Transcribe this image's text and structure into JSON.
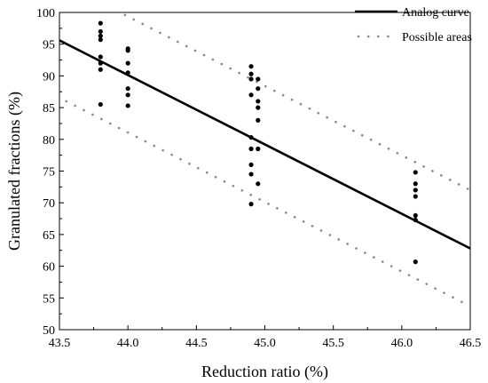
{
  "chart_data": {
    "type": "scatter",
    "title": "",
    "xlabel": "Reduction ratio (%)",
    "ylabel": "Granulated fractions (%)",
    "xlim": [
      43.5,
      46.5
    ],
    "ylim": [
      50,
      100
    ],
    "xticks": [
      "43.5",
      "44.0",
      "44.5",
      "45.0",
      "45.5",
      "46.0",
      "46.5"
    ],
    "xtick_values": [
      43.5,
      44.0,
      44.5,
      45.0,
      45.5,
      46.0,
      46.5
    ],
    "yticks": [
      "50",
      "55",
      "60",
      "65",
      "70",
      "75",
      "80",
      "85",
      "90",
      "95",
      "100"
    ],
    "ytick_values": [
      50,
      55,
      60,
      65,
      70,
      75,
      80,
      85,
      90,
      95,
      100
    ],
    "grid": false,
    "legend_position": "top-right",
    "legend": [
      {
        "label": "Analog curve",
        "style": "solid"
      },
      {
        "label": "Possible areas",
        "style": "dotted"
      }
    ],
    "points": [
      {
        "x": 43.8,
        "y": 98.3
      },
      {
        "x": 43.8,
        "y": 97.0
      },
      {
        "x": 43.8,
        "y": 96.3
      },
      {
        "x": 43.8,
        "y": 95.7
      },
      {
        "x": 43.8,
        "y": 93.0
      },
      {
        "x": 43.8,
        "y": 92.0
      },
      {
        "x": 43.8,
        "y": 91.0
      },
      {
        "x": 43.8,
        "y": 85.5
      },
      {
        "x": 44.0,
        "y": 94.3
      },
      {
        "x": 44.0,
        "y": 94.0
      },
      {
        "x": 44.0,
        "y": 92.0
      },
      {
        "x": 44.0,
        "y": 90.5
      },
      {
        "x": 44.0,
        "y": 88.0
      },
      {
        "x": 44.0,
        "y": 87.0
      },
      {
        "x": 44.0,
        "y": 85.3
      },
      {
        "x": 44.9,
        "y": 91.5
      },
      {
        "x": 44.9,
        "y": 90.3
      },
      {
        "x": 44.9,
        "y": 89.5
      },
      {
        "x": 44.9,
        "y": 87.0
      },
      {
        "x": 44.9,
        "y": 80.3
      },
      {
        "x": 44.9,
        "y": 78.5
      },
      {
        "x": 44.9,
        "y": 76.0
      },
      {
        "x": 44.9,
        "y": 74.5
      },
      {
        "x": 44.9,
        "y": 69.8
      },
      {
        "x": 44.95,
        "y": 89.5
      },
      {
        "x": 44.95,
        "y": 88.0
      },
      {
        "x": 44.95,
        "y": 86.0
      },
      {
        "x": 44.95,
        "y": 85.0
      },
      {
        "x": 44.95,
        "y": 83.0
      },
      {
        "x": 44.95,
        "y": 78.5
      },
      {
        "x": 44.95,
        "y": 73.0
      },
      {
        "x": 46.1,
        "y": 74.8
      },
      {
        "x": 46.1,
        "y": 73.0
      },
      {
        "x": 46.1,
        "y": 72.0
      },
      {
        "x": 46.1,
        "y": 71.0
      },
      {
        "x": 46.1,
        "y": 68.0
      },
      {
        "x": 46.1,
        "y": 67.3
      },
      {
        "x": 46.1,
        "y": 60.7
      }
    ],
    "analog_curve": [
      {
        "x": 43.5,
        "y": 95.6
      },
      {
        "x": 46.5,
        "y": 62.8
      }
    ],
    "upper_bound": [
      {
        "x": 43.85,
        "y": 101.0
      },
      {
        "x": 46.5,
        "y": 72.0
      }
    ],
    "lower_bound": [
      {
        "x": 43.55,
        "y": 86.0
      },
      {
        "x": 46.5,
        "y": 53.7
      }
    ],
    "colors": {
      "marker": "#000000",
      "curve": "#000000",
      "bound": "#888888"
    }
  }
}
